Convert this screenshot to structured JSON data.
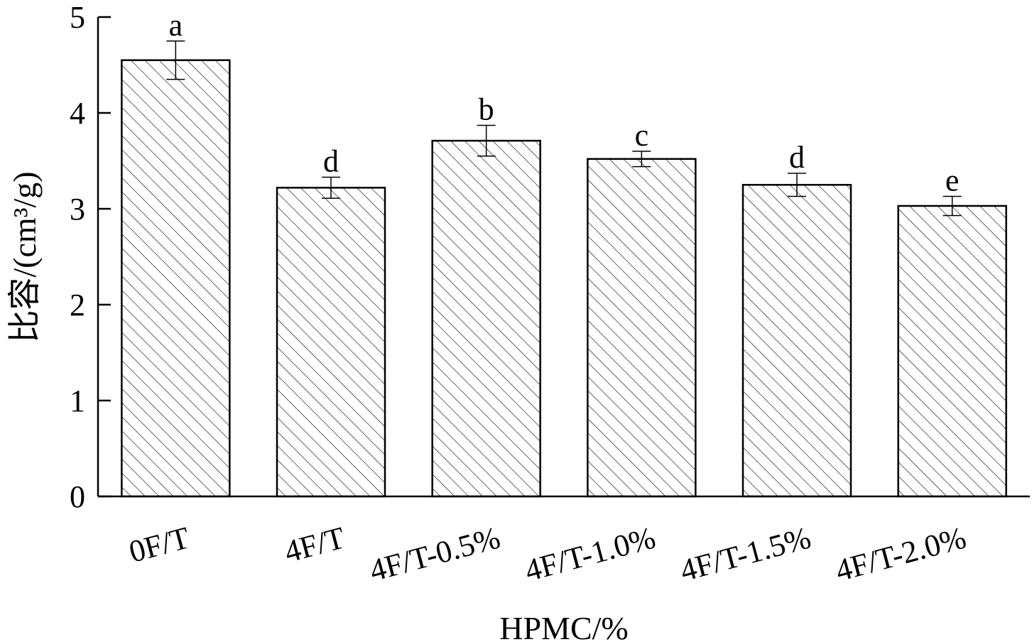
{
  "chart_data": {
    "type": "bar",
    "categories": [
      "0F/T",
      "4F/T",
      "4F/T-0.5%",
      "4F/T-1.0%",
      "4F/T-1.5%",
      "4F/T-2.0%"
    ],
    "values": [
      4.55,
      3.22,
      3.71,
      3.52,
      3.25,
      3.03
    ],
    "errors": [
      0.2,
      0.11,
      0.16,
      0.08,
      0.12,
      0.1
    ],
    "significance": [
      "a",
      "d",
      "b",
      "c",
      "d",
      "e"
    ],
    "xlabel": "HPMC/%",
    "ylabel": "比容/(cm³/g)",
    "ylim": [
      0,
      5
    ],
    "yticks": [
      0,
      1,
      2,
      3,
      4,
      5
    ],
    "grid": false,
    "bar_fill": "diagonal-hatch",
    "colors": {
      "bar_stroke": "#000000",
      "hatch": "#000000",
      "background": "#ffffff"
    }
  }
}
